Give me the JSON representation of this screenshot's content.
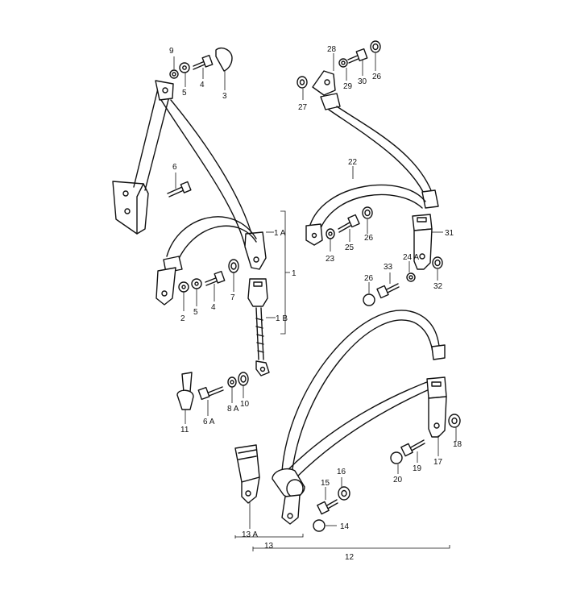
{
  "labels": {
    "l1": "1",
    "l1A": "1 A",
    "l1B": "1 B",
    "l2": "2",
    "l3": "3",
    "l4a": "4",
    "l4b": "4",
    "l5a": "5",
    "l5b": "5",
    "l6": "6",
    "l6A": "6 A",
    "l7": "7",
    "l8A": "8 A",
    "l9": "9",
    "l10": "10",
    "l11": "11",
    "l12": "12",
    "l13": "13",
    "l13A": "13 A",
    "l14": "14",
    "l15": "15",
    "l16": "16",
    "l17": "17",
    "l18": "18",
    "l19": "19",
    "l20": "20",
    "l22": "22",
    "l23": "23",
    "l24A": "24 A",
    "l25": "25",
    "l26a": "26",
    "l26b": "26",
    "l26c": "26",
    "l27": "27",
    "l28": "28",
    "l29": "29",
    "l30": "30",
    "l31": "31",
    "l32": "32",
    "l33": "33"
  }
}
